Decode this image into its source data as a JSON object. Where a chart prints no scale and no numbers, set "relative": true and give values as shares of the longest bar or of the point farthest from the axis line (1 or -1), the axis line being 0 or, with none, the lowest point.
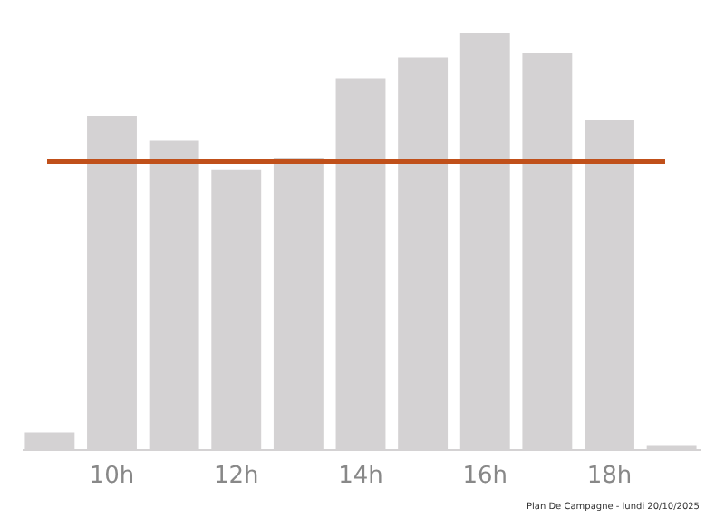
{
  "chart_data": {
    "type": "bar",
    "relative": true,
    "categories": [
      null,
      "10h",
      null,
      "12h",
      null,
      "14h",
      null,
      "16h",
      null,
      "18h",
      null
    ],
    "values": [
      0.04,
      0.8,
      0.74,
      0.67,
      0.7,
      0.89,
      0.94,
      1,
      0.95,
      0.79,
      0.01
    ],
    "color": "#d4d2d3",
    "ref_lines": [
      {
        "axis": "y",
        "value": 0.69,
        "color": "#c0501a"
      }
    ],
    "annotations": [
      "Plan De Campagne - lundi 20/10/2025"
    ],
    "grid": false
  }
}
